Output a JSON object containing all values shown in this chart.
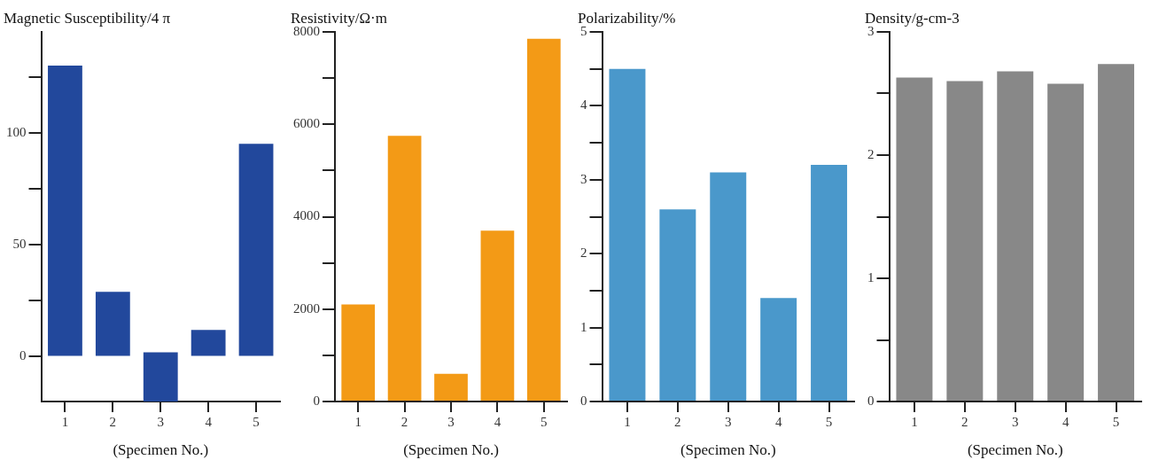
{
  "chart_data": [
    {
      "type": "bar",
      "ylabel": "Magnetic Susceptibility/4 π",
      "xlabel": "(Specimen No.)",
      "categories": [
        "1",
        "2",
        "3",
        "4",
        "5"
      ],
      "values": [
        130,
        29,
        22,
        12,
        95
      ],
      "base": [
        0,
        0,
        -20,
        0,
        0
      ],
      "color": "#22489c",
      "ylim": [
        -20,
        145
      ],
      "yticks": [
        0,
        {
          "value": 25,
          "label": null
        },
        50,
        {
          "value": 75,
          "label": null
        },
        100,
        {
          "value": 125,
          "label": null
        }
      ],
      "grid": false
    },
    {
      "type": "bar",
      "ylabel": "Resistivity/Ω·m",
      "xlabel": "(Specimen No.)",
      "categories": [
        "1",
        "2",
        "3",
        "4",
        "5"
      ],
      "values": [
        2100,
        5750,
        600,
        3700,
        7850
      ],
      "color": "#f39a16",
      "ylim": [
        0,
        8000
      ],
      "yticks": [
        0,
        {
          "value": 1000,
          "label": null
        },
        2000,
        {
          "value": 3000,
          "label": null
        },
        4000,
        {
          "value": 5000,
          "label": null
        },
        6000,
        {
          "value": 7000,
          "label": null
        },
        8000
      ],
      "grid": false
    },
    {
      "type": "bar",
      "ylabel": "Polarizability/%",
      "xlabel": "(Specimen No.)",
      "categories": [
        "1",
        "2",
        "3",
        "4",
        "5"
      ],
      "values": [
        4.5,
        2.6,
        3.1,
        1.4,
        3.2
      ],
      "color": "#4a98cb",
      "ylim": [
        0,
        5
      ],
      "yticks": [
        0,
        {
          "value": 0.5,
          "label": null
        },
        1,
        {
          "value": 1.5,
          "label": null
        },
        2,
        {
          "value": 2.5,
          "label": null
        },
        3,
        {
          "value": 3.5,
          "label": null
        },
        4,
        {
          "value": 4.5,
          "label": null
        },
        5
      ],
      "grid": false
    },
    {
      "type": "bar",
      "ylabel": "Density/g-cm-3",
      "xlabel": "(Specimen No.)",
      "categories": [
        "1",
        "2",
        "3",
        "4",
        "5"
      ],
      "values": [
        2.63,
        2.6,
        2.68,
        2.58,
        2.74
      ],
      "color": "#888888",
      "ylim": [
        0,
        3
      ],
      "yticks": [
        0,
        {
          "value": 0.5,
          "label": null
        },
        1,
        {
          "value": 1.5,
          "label": null
        },
        2,
        {
          "value": 2.5,
          "label": null
        },
        3
      ],
      "grid": false
    }
  ]
}
